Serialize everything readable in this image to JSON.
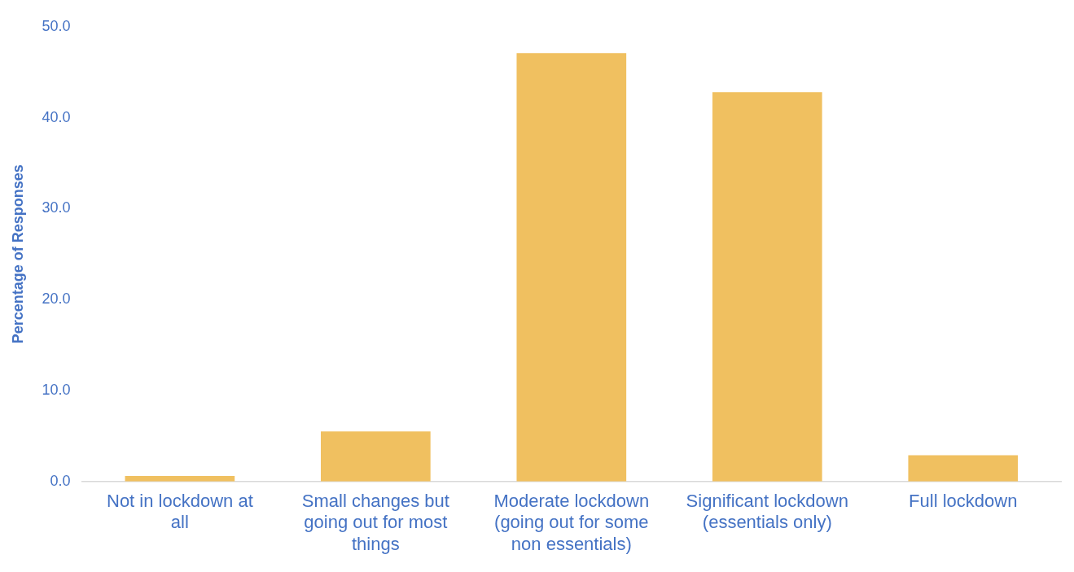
{
  "chart_data": {
    "type": "bar",
    "ylabel": "Percentage of Responses",
    "categories": [
      "Not in lockdown at all",
      "Small changes but going out for most things",
      "Moderate lockdown (going out for some non essentials)",
      "Significant lockdown (essentials only)",
      "Full lockdown"
    ],
    "values": [
      0.6,
      5.5,
      47.1,
      42.8,
      2.9
    ],
    "color": "#f0c060",
    "ylim": [
      0,
      50
    ],
    "yticks": [
      {
        "value": 0,
        "label": "0.0"
      },
      {
        "value": 10,
        "label": "10.0"
      },
      {
        "value": 20,
        "label": "20.0"
      },
      {
        "value": 30,
        "label": "30.0"
      },
      {
        "value": 40,
        "label": "40.0"
      },
      {
        "value": 50,
        "label": "50.0"
      }
    ],
    "grid": false,
    "legend": false
  }
}
